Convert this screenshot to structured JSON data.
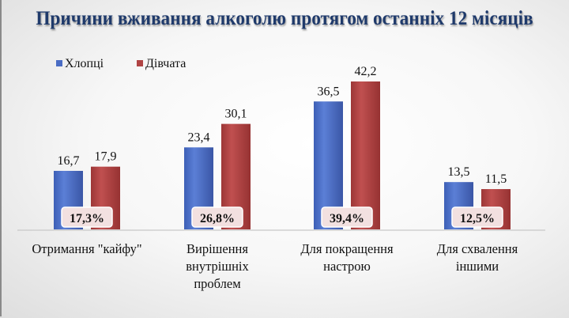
{
  "chart_data": {
    "type": "bar",
    "title": "Причини вживання алкоголю протягом останніх 12 місяців",
    "categories": [
      [
        "Отримання \"кайфу\""
      ],
      [
        "Вирішення",
        "внутрішніх",
        "проблем"
      ],
      [
        "Для покращення",
        "настрою"
      ],
      [
        "Для схвалення",
        "іншими"
      ]
    ],
    "series": [
      {
        "name": "Хлопці",
        "color": "#4a6cc4",
        "values": [
          16.7,
          23.4,
          36.5,
          13.5
        ],
        "labels": [
          "16,7",
          "23,4",
          "36,5",
          "13,5"
        ]
      },
      {
        "name": "Дівчата",
        "color": "#b04444",
        "values": [
          17.9,
          30.1,
          42.2,
          11.5
        ],
        "labels": [
          "17,9",
          "30,1",
          "42,2",
          "11,5"
        ]
      }
    ],
    "totals": [
      "17,3%",
      "26,8%",
      "39,4%",
      "12,5%"
    ],
    "ylim": [
      0,
      42.2
    ],
    "grid": false,
    "legend": "top-left"
  }
}
